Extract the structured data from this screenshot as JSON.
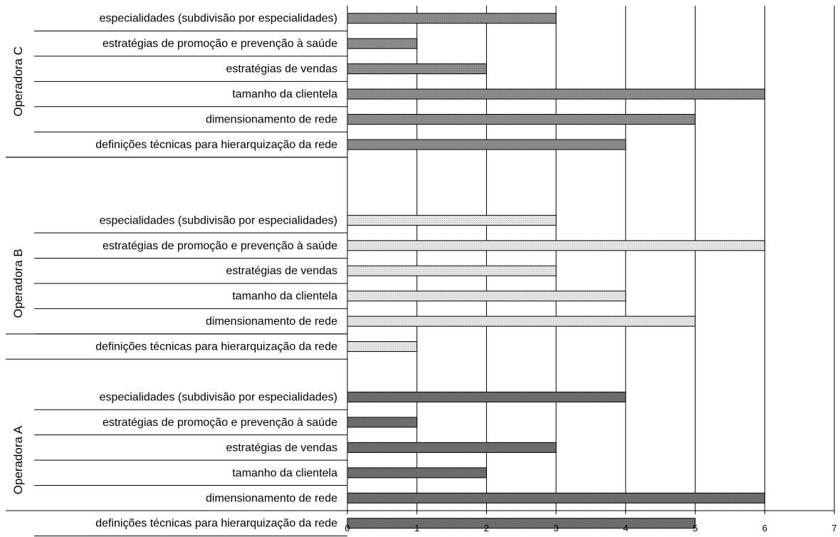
{
  "chart_data": {
    "type": "bar",
    "orientation": "horizontal",
    "xlim": [
      0,
      7
    ],
    "x_ticks": [
      "0",
      "1",
      "2",
      "3",
      "4",
      "5",
      "6",
      "7"
    ],
    "grid": "vertical lines on",
    "legend": "none",
    "groups": [
      {
        "name": "Operadora C",
        "color": "#8c8c8c",
        "categories": [
          "especialidades (subdivisão por especialidades)",
          "estratégias de promoção e prevenção à saúde",
          "estratégias de vendas",
          "tamanho da clientela",
          "dimensionamento de rede",
          "definições técnicas para hierarquização da rede"
        ],
        "values": [
          3,
          1,
          2,
          6,
          5,
          4
        ]
      },
      {
        "name": "Operadora B",
        "color": "#e4e4e4",
        "categories": [
          "especialidades (subdivisão por especialidades)",
          "estratégias de promoção e prevenção à saúde",
          "estratégias de vendas",
          "tamanho da clientela",
          "dimensionamento de rede",
          "definições técnicas para hierarquização da rede"
        ],
        "values": [
          3,
          6,
          3,
          4,
          5,
          1
        ]
      },
      {
        "name": "Operadora A",
        "color": "#6e6e6e",
        "categories": [
          "especialidades (subdivisão por especialidades)",
          "estratégias de promoção e prevenção à saúde",
          "estratégias de vendas",
          "tamanho da clientela",
          "dimensionamento de rede",
          "definições técnicas para hierarquização da rede"
        ],
        "values": [
          4,
          1,
          3,
          2,
          6,
          5
        ]
      }
    ]
  }
}
